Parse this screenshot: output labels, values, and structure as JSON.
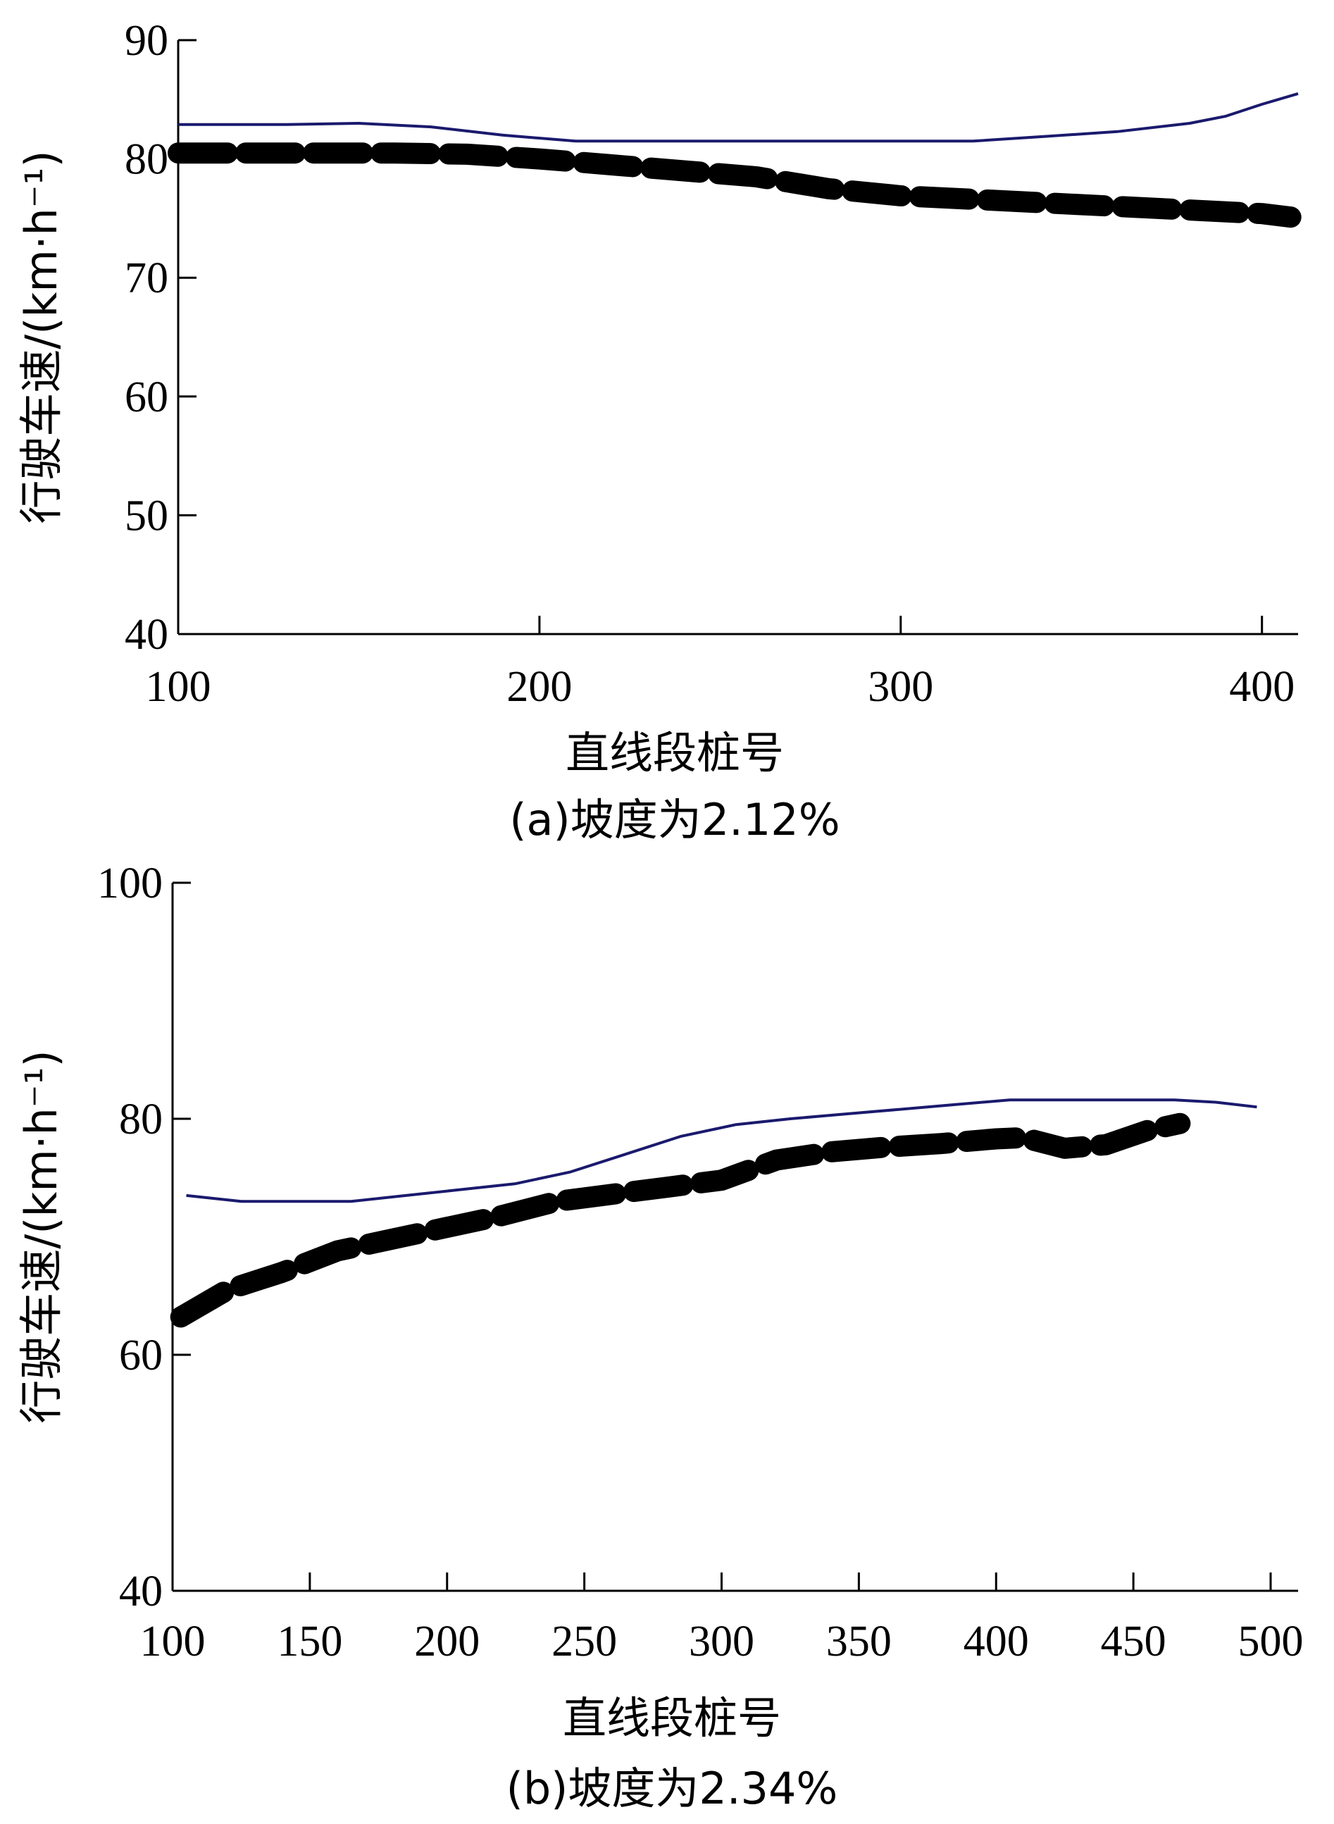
{
  "chart_data": [
    {
      "type": "line",
      "caption": "(a)坡度为2.12%",
      "xlabel": "直线段桩号",
      "ylabel": "行驶车速/(km·h⁻¹)",
      "xlim": [
        100,
        410
      ],
      "ylim": [
        40,
        90
      ],
      "xticks": [
        "100",
        "200",
        "300",
        "400"
      ],
      "yticks": [
        "40",
        "50",
        "60",
        "70",
        "80",
        "90"
      ],
      "series": [
        {
          "style": "solid-thin",
          "color": "#1a1a6e",
          "x": [
            100,
            130,
            150,
            170,
            190,
            210,
            240,
            270,
            300,
            320,
            340,
            360,
            380,
            390,
            400,
            410
          ],
          "y": [
            82.9,
            82.9,
            83.0,
            82.7,
            82.0,
            81.5,
            81.5,
            81.5,
            81.5,
            81.5,
            81.9,
            82.3,
            83.0,
            83.6,
            84.6,
            85.5
          ]
        },
        {
          "style": "dashed-thick",
          "color": "#000000",
          "x": [
            100,
            120,
            140,
            160,
            180,
            200,
            220,
            240,
            260,
            280,
            300,
            320,
            340,
            360,
            380,
            400,
            408
          ],
          "y": [
            80.5,
            80.5,
            80.5,
            80.5,
            80.4,
            80.0,
            79.5,
            79.0,
            78.5,
            77.5,
            76.9,
            76.6,
            76.3,
            76.0,
            75.7,
            75.4,
            75.1
          ]
        }
      ]
    },
    {
      "type": "line",
      "caption": "(b)坡度为2.34%",
      "xlabel": "直线段桩号",
      "ylabel": "行驶车速/(km·h⁻¹)",
      "xlim": [
        100,
        510
      ],
      "ylim": [
        40,
        100
      ],
      "xticks": [
        "100",
        "150",
        "200",
        "250",
        "300",
        "350",
        "400",
        "450",
        "500"
      ],
      "yticks": [
        "40",
        "60",
        "80",
        "100"
      ],
      "series": [
        {
          "style": "solid-thin",
          "color": "#1a1a6e",
          "x": [
            105,
            125,
            145,
            165,
            185,
            205,
            225,
            245,
            265,
            285,
            305,
            325,
            345,
            365,
            385,
            405,
            425,
            445,
            465,
            480,
            495
          ],
          "y": [
            73.5,
            73.0,
            73.0,
            73.0,
            73.5,
            74.0,
            74.5,
            75.5,
            77.0,
            78.5,
            79.5,
            80.0,
            80.4,
            80.8,
            81.2,
            81.6,
            81.6,
            81.6,
            81.6,
            81.4,
            81.0
          ]
        },
        {
          "style": "dashed-thick",
          "color": "#000000",
          "x": [
            103,
            120,
            140,
            160,
            180,
            200,
            220,
            240,
            260,
            280,
            300,
            320,
            340,
            360,
            380,
            400,
            410,
            425,
            440,
            455,
            467
          ],
          "y": [
            63.2,
            65.5,
            67.0,
            68.8,
            69.8,
            70.8,
            71.8,
            73.0,
            73.6,
            74.2,
            74.8,
            76.5,
            77.2,
            77.6,
            77.9,
            78.3,
            78.4,
            77.5,
            77.8,
            79.0,
            79.6
          ]
        }
      ]
    }
  ]
}
